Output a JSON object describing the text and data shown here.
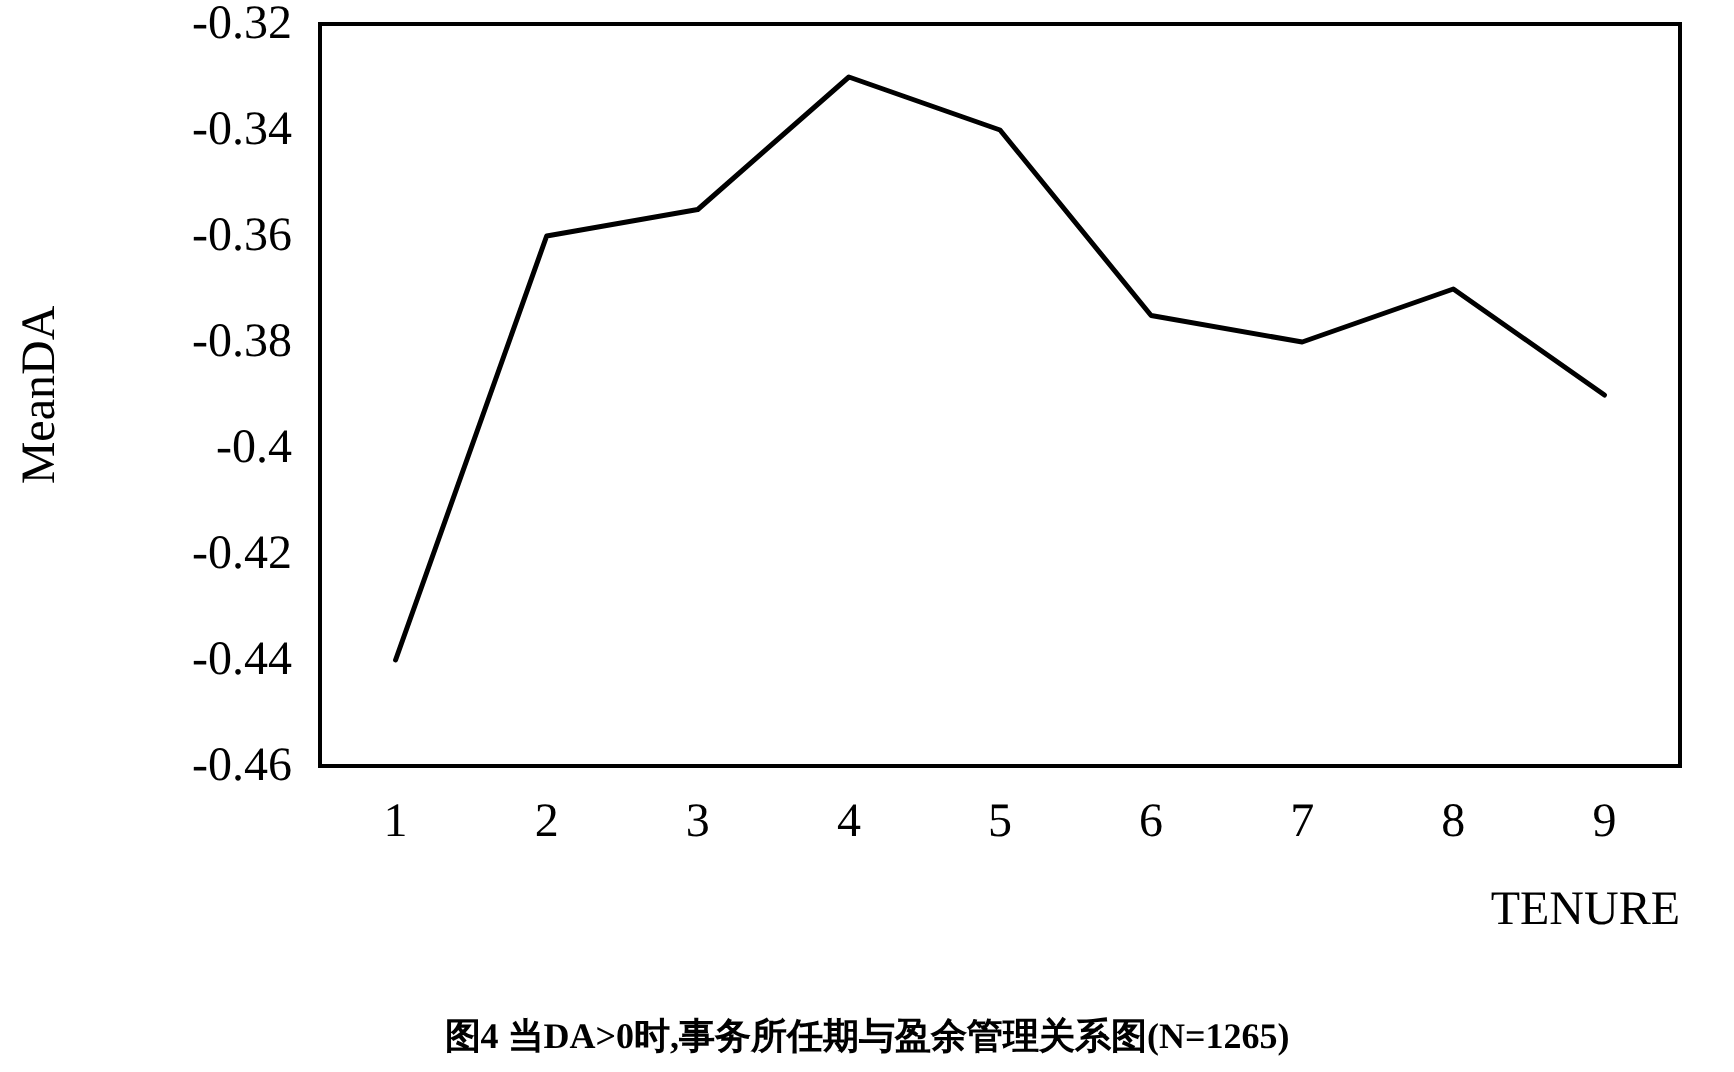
{
  "chart_data": {
    "type": "line",
    "title": "图4 当DA>0时,事务所任期与盈余管理关系图(N=1265)",
    "xlabel": "TENURE",
    "ylabel": "MeanDA",
    "categories": [
      "1",
      "2",
      "3",
      "4",
      "5",
      "6",
      "7",
      "8",
      "9"
    ],
    "series": [
      {
        "color": "#000000",
        "values": [
          -0.44,
          -0.36,
          -0.355,
          -0.33,
          -0.34,
          -0.375,
          -0.38,
          -0.37,
          -0.39
        ]
      }
    ],
    "ylim": [
      -0.46,
      -0.32
    ],
    "yticks": [
      -0.46,
      -0.44,
      -0.42,
      -0.4,
      -0.38,
      -0.36,
      -0.34,
      -0.32
    ],
    "grid": false,
    "marker": "none",
    "line_style": "solid"
  }
}
